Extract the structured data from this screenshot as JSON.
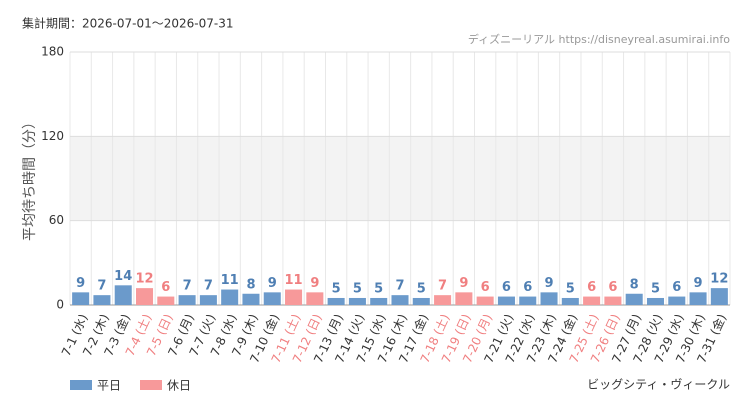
{
  "chart_data": {
    "type": "bar",
    "title": "集計期間：2026-07-01～2026-07-31",
    "source": "ディズニーリアル https://disneyreal.asumirai.info",
    "ylabel": "平均待ち時間（分）",
    "attraction": "ビッグシティ・ヴィークル",
    "categories": [
      "7-1 (水)",
      "7-2 (木)",
      "7-3 (金)",
      "7-4 (土)",
      "7-5 (日)",
      "7-6 (月)",
      "7-7 (火)",
      "7-8 (水)",
      "7-9 (木)",
      "7-10 (金)",
      "7-11 (土)",
      "7-12 (日)",
      "7-13 (月)",
      "7-14 (火)",
      "7-15 (水)",
      "7-16 (木)",
      "7-17 (金)",
      "7-18 (土)",
      "7-19 (日)",
      "7-20 (月)",
      "7-21 (火)",
      "7-22 (水)",
      "7-23 (木)",
      "7-24 (金)",
      "7-25 (土)",
      "7-26 (日)",
      "7-27 (月)",
      "7-28 (火)",
      "7-29 (水)",
      "7-30 (木)",
      "7-31 (金)"
    ],
    "series": [
      {
        "name": "平日",
        "color": "#6b9acb",
        "label_color": "#4f7fb3",
        "values": [
          9,
          7,
          14,
          null,
          null,
          7,
          7,
          11,
          8,
          9,
          null,
          null,
          5,
          5,
          5,
          7,
          5,
          null,
          null,
          null,
          6,
          6,
          9,
          5,
          null,
          null,
          8,
          5,
          6,
          9,
          12
        ]
      },
      {
        "name": "休日",
        "color": "#f7999a",
        "label_color": "#f07f80",
        "values": [
          null,
          null,
          null,
          12,
          6,
          null,
          null,
          null,
          null,
          null,
          11,
          9,
          null,
          null,
          null,
          null,
          null,
          7,
          9,
          6,
          null,
          null,
          null,
          null,
          6,
          6,
          null,
          null,
          null,
          null,
          null
        ]
      }
    ],
    "ylim": [
      0,
      180
    ],
    "yticks": [
      0,
      60,
      120,
      180
    ],
    "grid": true
  }
}
